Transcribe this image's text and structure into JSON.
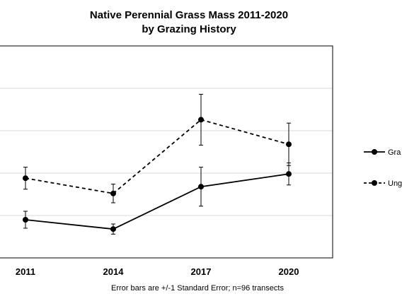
{
  "chart_data": {
    "type": "line",
    "title_lines": [
      "Native Perennial Grass Mass 2011-2020",
      "by Grazing History"
    ],
    "categories": [
      "2011",
      "2014",
      "2017",
      "2020"
    ],
    "ylim": [
      0,
      250
    ],
    "y_gridlines": [
      50,
      100,
      150,
      200
    ],
    "grid": true,
    "series": [
      {
        "name": "Gra",
        "line_style": "solid",
        "values": [
          45,
          34,
          84,
          99
        ],
        "error": [
          10,
          6,
          23,
          13
        ]
      },
      {
        "name": "Ung",
        "line_style": "dashed",
        "values": [
          94,
          76,
          163,
          134
        ],
        "error": [
          13,
          11,
          30,
          25
        ]
      }
    ],
    "caption": "Error bars are +/-1 Standard Error; n=96 transects",
    "legend_position": "right",
    "colors": {
      "line": "#000000",
      "grid": "#d9d9d9",
      "frame": "#000000"
    }
  }
}
